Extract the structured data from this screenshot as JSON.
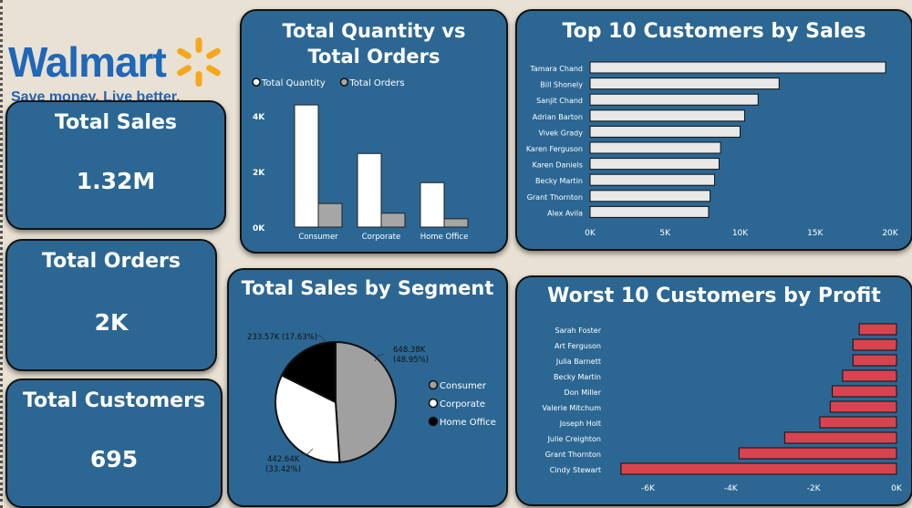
{
  "brand": {
    "name": "Walmart",
    "tagline": "Save money. Live better.",
    "spark_color": "#f6a81b",
    "blue": "#1f67b8"
  },
  "kpis": [
    {
      "title": "Total Sales",
      "value": "1.32M"
    },
    {
      "title": "Total Orders",
      "value": "2K"
    },
    {
      "title": "Total Customers",
      "value": "695"
    }
  ],
  "chart_data": [
    {
      "type": "bar",
      "title": "Total Quantity vs Total Orders",
      "categories": [
        "Consumer",
        "Corporate",
        "Home Office"
      ],
      "series": [
        {
          "name": "Total Quantity",
          "color": "#ffffff",
          "values": [
            4400,
            2650,
            1600
          ]
        },
        {
          "name": "Total Orders",
          "color": "#a6a6a6",
          "values": [
            850,
            500,
            300
          ]
        }
      ],
      "yticks": [
        "0K",
        "2K",
        "4K"
      ],
      "ylim": [
        0,
        4500
      ],
      "legend": "top-left"
    },
    {
      "type": "bar",
      "orientation": "horizontal",
      "title": "Top 10 Customers by Sales",
      "categories": [
        "Tamara Chand",
        "Bill Shonely",
        "Sanjit Chand",
        "Adrian Barton",
        "Vivek Grady",
        "Karen Ferguson",
        "Karen Daniels",
        "Becky Martin",
        "Grant Thornton",
        "Alex Avila"
      ],
      "values": [
        19700,
        12600,
        11200,
        10300,
        10000,
        8700,
        8600,
        8300,
        8000,
        7900
      ],
      "xticks": [
        "0K",
        "5K",
        "10K",
        "15K",
        "20K"
      ],
      "xlim": [
        0,
        20000
      ],
      "color": "#e8e8e8"
    },
    {
      "type": "pie",
      "title": "Total Sales by Segment",
      "labels": [
        "Consumer",
        "Corporate",
        "Home Office"
      ],
      "values": [
        648.38,
        442.64,
        233.57
      ],
      "data_labels": [
        "648.38K (48.95%)",
        "442.64K (33.42%)",
        "233.57K (17.63%)"
      ],
      "colors": [
        "#a0a0a0",
        "#ffffff",
        "#000000"
      ],
      "legend": "right"
    },
    {
      "type": "bar",
      "orientation": "horizontal",
      "title": "Worst 10 Customers by Profit",
      "categories": [
        "Sarah Foster",
        "Art Ferguson",
        "Julia Barnett",
        "Becky Martin",
        "Don Miller",
        "Valerie Mitchum",
        "Joseph Holt",
        "Julie Creighton",
        "Grant Thornton",
        "Cindy Stewart"
      ],
      "values": [
        -900,
        -1050,
        -1050,
        -1300,
        -1550,
        -1600,
        -1850,
        -2700,
        -3800,
        -6650
      ],
      "xticks": [
        "-6K",
        "-4K",
        "-2K",
        "0K"
      ],
      "xlim": [
        -7000,
        0
      ],
      "color": "#d9434f"
    }
  ]
}
